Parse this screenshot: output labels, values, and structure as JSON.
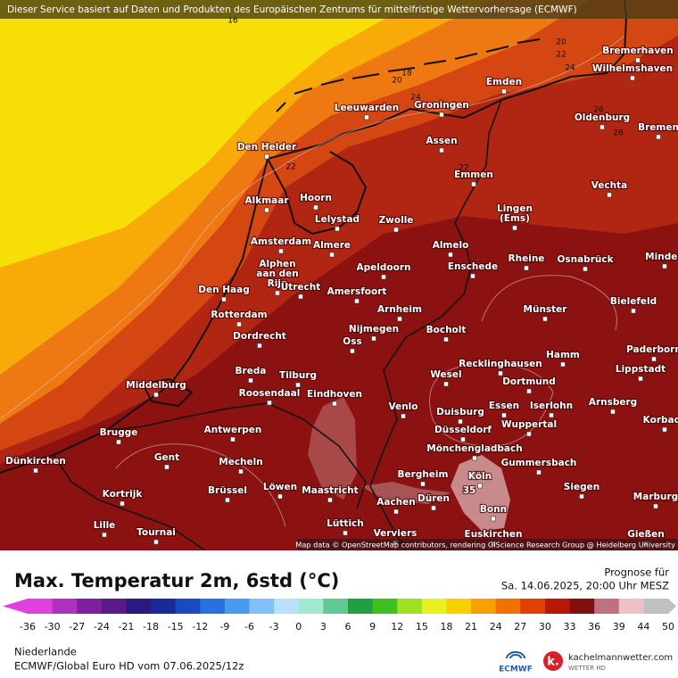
{
  "banner": "Dieser Service basiert auf Daten und Produkten des Europäischen Zentrums für mittelfristige Wettervorhersage (ECMWF)",
  "attribution": "Map data © OpenStreetMap contributors, rendering GIScience Research Group @ Heidelberg University",
  "cities": [
    "Bremerhaven",
    "Wilhelmshaven",
    "Emden",
    "Leeuwarden",
    "Groningen",
    "Oldenburg",
    "Bremen",
    "Den Helder",
    "Assen",
    "Emmen",
    "Vechta",
    "Alkmaar",
    "Hoorn",
    [
      "Lingen",
      "(Ems)"
    ],
    "Lelystad",
    "Zwolle",
    "Amsterdam",
    "Almere",
    "Almelo",
    "Rheine",
    "Osnabrück",
    "Minden",
    [
      "Alphen",
      "aan den",
      "Rijn"
    ],
    "Apeldoorn",
    "Enschede",
    "Utrecht",
    "Amersfoort",
    "Den Haag",
    "Arnheim",
    "Münster",
    "Bielefeld",
    "Rotterdam",
    "Nijmegen",
    "Bocholt",
    "Dordrecht",
    "Oss",
    "Paderborn",
    "Hamm",
    "Recklinghausen",
    "Lippstadt",
    "Breda",
    "Tilburg",
    "Wesel",
    "Middelburg",
    "Dortmund",
    "Roosendaal",
    "Eindhoven",
    "Essen",
    "Iserlohn",
    "Arnsberg",
    "Venlo",
    "Duisburg",
    "Korbach",
    "Wuppertal",
    "Düsseldorf",
    "Brugge",
    "Antwerpen",
    "Mönchengladbach",
    "Gent",
    "Mecheln",
    "Gummersbach",
    "Dünkirchen",
    "Bergheim",
    "Köln",
    "Kortrijk",
    "Brüssel",
    "Löwen",
    "Maastricht",
    "Siegen",
    "Marburg",
    "Düren",
    "Aachen",
    "Bonn",
    "Lille",
    "Lüttich",
    "Tournai",
    "Verviers",
    "Euskirchen",
    "Gießen"
  ],
  "contour_labels": [
    16,
    20,
    22,
    24,
    18,
    20,
    24,
    26,
    28,
    22,
    22,
    35
  ],
  "legend": {
    "title": "Max. Temperatur 2m, 6std (°C)",
    "forecast_label": "Prognose für",
    "forecast_time": "Sa. 14.06.2025, 20:00 Uhr MESZ",
    "region": "Niederlande",
    "model_run": "ECMWF/Global Euro HD vom  07.06.2025/12z",
    "ticks": [
      -36,
      -30,
      -27,
      -24,
      -21,
      -18,
      -15,
      -12,
      -9,
      -6,
      -3,
      0,
      3,
      6,
      9,
      12,
      15,
      18,
      21,
      24,
      27,
      30,
      33,
      36,
      39,
      44,
      50
    ],
    "colors": [
      "#e040e0",
      "#b030c0",
      "#8020a0",
      "#5a1a8a",
      "#2a1a80",
      "#1a2a9a",
      "#1a4ac0",
      "#2a70e0",
      "#4a9af0",
      "#80c0f8",
      "#b8e0fa",
      "#a0e8d0",
      "#60c890",
      "#20a040",
      "#40c020",
      "#a0e020",
      "#e8f020",
      "#f8d000",
      "#f8a000",
      "#f07000",
      "#e04000",
      "#b81808",
      "#801010",
      "#c07080",
      "#f0c0c8",
      "#c0c0c0"
    ]
  },
  "logos": {
    "ecmwf": "ECMWF",
    "kachelmann": "kachelmannwetter.com",
    "kachelmann_sub": "WETTER HD"
  }
}
